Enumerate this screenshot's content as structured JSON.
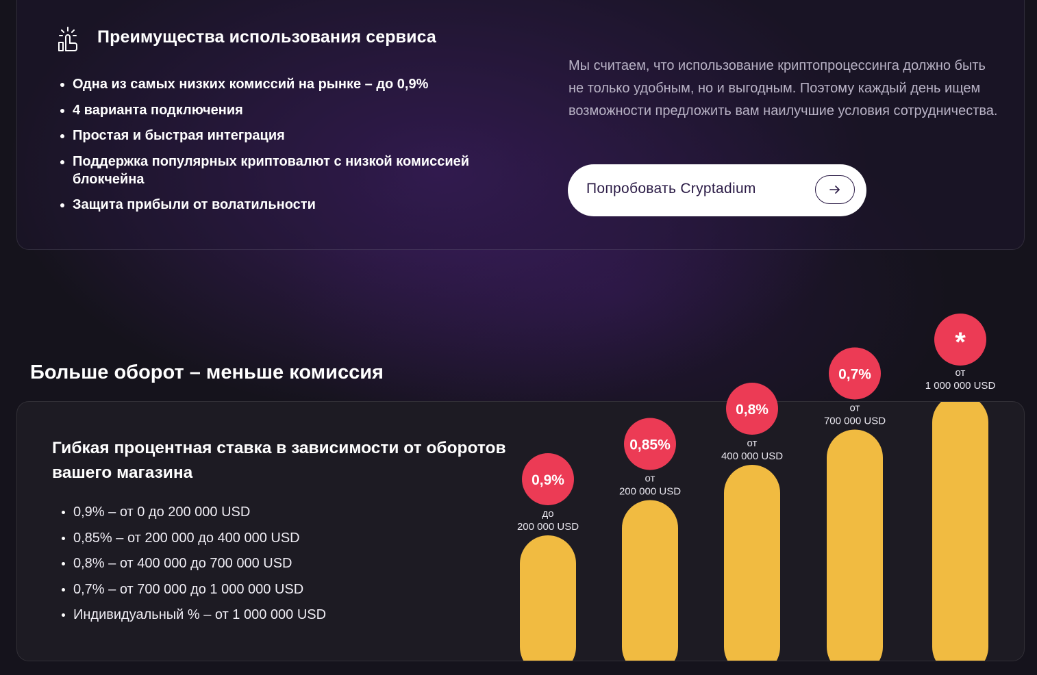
{
  "advantages": {
    "icon": "hand-pointer-icon",
    "title": "Преимущества использования сервиса",
    "items": [
      "Одна из самых низких комиссий на рынке – до 0,9%",
      "4 варианта подключения",
      "Простая и быстрая интеграция",
      "Поддержка популярных криптовалют с низкой комиссией блокчейна",
      "Защита прибыли от волатильности"
    ],
    "description": "Мы считаем, что использование криптопроцессинга должно быть не только удобным, но и выгодным. Поэтому каждый день ищем возможности предложить вам наилучшие условия сотрудничества.",
    "button_label": "Попробовать Cryptadium",
    "button_icon": "arrow-right-icon"
  },
  "turnover": {
    "title": "Больше оборот – меньше комиссия",
    "card_title": "Гибкая процентная ставка в зависимости от оборотов вашего магазина",
    "rates": [
      "0,9% – от 0 до 200 000 USD",
      "0,85% – от 200 000 до 400 000 USD",
      "0,8% – от 400 000 до 700 000 USD",
      "0,7% – от 700 000 до 1 000 000 USD",
      "Индивидуальный % – от 1 000 000 USD"
    ]
  },
  "colors": {
    "bar": "#f1bb41",
    "badge": "#ec3b55"
  },
  "chart_data": {
    "type": "bar",
    "categories": [
      "до 200 000 USD",
      "от 200 000 USD",
      "от 400 000 USD",
      "от 700 000 USD",
      "от 1 000 000 USD"
    ],
    "values": [
      1,
      2,
      3,
      4,
      5
    ],
    "badges": [
      "0,9%",
      "0,85%",
      "0,8%",
      "0,7%",
      "*"
    ],
    "caption_prefix": [
      "до",
      "от",
      "от",
      "от",
      "от"
    ],
    "caption_amount": [
      "200 000 USD",
      "200 000 USD",
      "400 000 USD",
      "700 000 USD",
      "1 000 000 USD"
    ]
  }
}
